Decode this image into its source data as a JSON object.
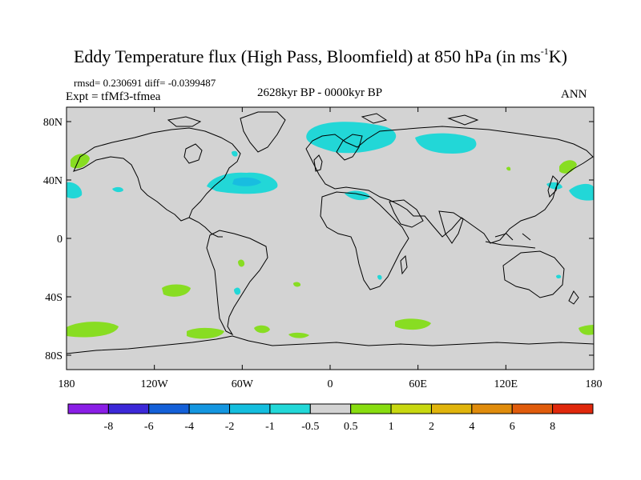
{
  "title": {
    "main": "Eddy Temperature flux (High Pass, Bloomfield) at 850 hPa (in ms",
    "sup": "-1",
    "end": "K)"
  },
  "stats": {
    "rmsd": "rmsd= 0.230691",
    "diff": "diff= -0.0399487",
    "experiment": "Expt = tfMf3-tfmea"
  },
  "period": "2628kyr BP - 0000kyr BP",
  "season": "ANN",
  "axes": {
    "lat_ticks": [
      "80N",
      "40N",
      "0",
      "40S",
      "80S"
    ],
    "lon_ticks": [
      "180",
      "120W",
      "60W",
      "0",
      "60E",
      "120E",
      "180"
    ]
  },
  "colors": {
    "background_field": "#d3d3d3",
    "neg_1": "#22d7d7",
    "neg_2": "#18bde0",
    "pos_1": "#88dd22",
    "coast": "#000000"
  },
  "colorbar": {
    "labels": [
      "-8",
      "-6",
      "-4",
      "-2",
      "-1",
      "-0.5",
      "0.5",
      "1",
      "2",
      "4",
      "6",
      "8"
    ],
    "colors": [
      "#8a1ee6",
      "#3c28d8",
      "#1460d8",
      "#1496e0",
      "#14bede",
      "#22d8d8",
      "#d3d3d3",
      "#88dd10",
      "#c8d810",
      "#e0b40c",
      "#e08c0c",
      "#e05c0c",
      "#e0280c"
    ]
  }
}
